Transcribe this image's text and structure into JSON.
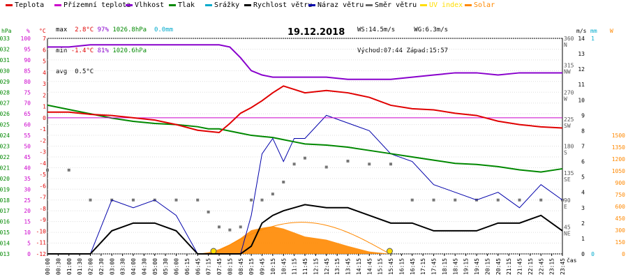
{
  "chart_data": {
    "type": "line",
    "title": "19.12.2018",
    "legend": [
      {
        "name": "Teplota",
        "color": "#e00000"
      },
      {
        "name": "Přízemní teplota",
        "color": "#cc00cc"
      },
      {
        "name": "Vlhkost",
        "color": "#8800cc"
      },
      {
        "name": "Tlak",
        "color": "#008800"
      },
      {
        "name": "Srážky",
        "color": "#00aacc"
      },
      {
        "name": "Rychlost větru",
        "color": "#000000"
      },
      {
        "name": "Náraz větru",
        "color": "#0000aa"
      },
      {
        "name": "Směr větru",
        "color": "#666666"
      },
      {
        "name": "UV index",
        "color": "#ffdd00"
      },
      {
        "name": "Solar",
        "color": "#ff8800"
      }
    ],
    "stats": {
      "max_label": "max",
      "max_temp": "2.8°C",
      "max_hum": "97%",
      "max_press": "1026.8hPa",
      "rain": "0.0mm",
      "min_label": "min",
      "min_temp": "-1.4°C",
      "min_hum": "81%",
      "min_press": "1020.6hPa",
      "avg_label": "avg",
      "avg_temp": "0.5°C",
      "ws": "WS:14.5m/s",
      "wg": "WG:6.3m/s",
      "sunrise": "Východ:07:44",
      "sunset": "Západ:15:57"
    },
    "axes": {
      "hpa_label": "hPa",
      "hpa_ticks": [
        "1033",
        "1032",
        "1031",
        "1030",
        "1029",
        "1028",
        "1027",
        "1026",
        "1025",
        "1024",
        "1023",
        "1022",
        "1021",
        "1020",
        "1019",
        "1018",
        "1017",
        "1016",
        "1015",
        "1014",
        "1013"
      ],
      "pct_label": "%",
      "pct_ticks": [
        "100",
        "95",
        "90",
        "85",
        "80",
        "75",
        "70",
        "65",
        "60",
        "55",
        "50",
        "45",
        "40",
        "35",
        "30",
        "25",
        "20",
        "15",
        "10",
        "5",
        "0"
      ],
      "c_label": "°C",
      "c_ticks": [
        "7",
        "6",
        "5",
        "4",
        "3",
        "2",
        "1",
        "0",
        "-1",
        "-2",
        "-3",
        "-4",
        "-5",
        "-6",
        "-7",
        "-8",
        "-9",
        "-10",
        "-11",
        "-12"
      ],
      "ms_label": "m/s",
      "ms_ticks": [
        "14",
        "13",
        "12",
        "11",
        "10",
        "9",
        "8",
        "7",
        "6",
        "5",
        "4",
        "3",
        "2",
        "1",
        "0"
      ],
      "mm_label": "mm",
      "mm_ticks": [
        "1",
        "0"
      ],
      "w_label": "W",
      "w_ticks": [
        "1500",
        "1350",
        "1200",
        "1050",
        "900",
        "750",
        "600",
        "450",
        "300",
        "150",
        "0"
      ],
      "dir_ticks": [
        "360\nN",
        "315\nNW",
        "270\nW",
        "225\nSW",
        "180\nS",
        "135\nSE",
        "90\nE",
        "45\nNE"
      ],
      "x_label": "čas",
      "x_ticks": [
        "00:00",
        "00:30",
        "01:00",
        "01:30",
        "02:00",
        "02:30",
        "03:00",
        "03:30",
        "04:00",
        "04:30",
        "05:00",
        "05:30",
        "06:00",
        "06:15",
        "06:45",
        "07:15",
        "07:45",
        "08:15",
        "08:45",
        "09:15",
        "09:45",
        "10:15",
        "10:45",
        "11:15",
        "11:45",
        "12:15",
        "12:45",
        "13:15",
        "13:45",
        "14:15",
        "14:45",
        "15:15",
        "15:45",
        "16:15",
        "16:45",
        "17:15",
        "17:45",
        "18:15",
        "18:45",
        "19:15",
        "19:45",
        "20:15",
        "20:45",
        "21:15",
        "21:45",
        "22:15",
        "22:45",
        "23:15",
        "23:45"
      ]
    },
    "x_hours": [
      0,
      1,
      2,
      3,
      4,
      5,
      6,
      7,
      7.5,
      8,
      8.5,
      9,
      9.5,
      10,
      10.5,
      11,
      11.5,
      12,
      13,
      14,
      15,
      16,
      17,
      18,
      19,
      20,
      21,
      22,
      23,
      24
    ],
    "series": [
      {
        "name": "Teplota",
        "unit": "°C",
        "y": [
          0.5,
          0.5,
          0.3,
          0.2,
          0.0,
          -0.2,
          -0.6,
          -1.1,
          -1.2,
          -1.3,
          -0.5,
          0.4,
          0.9,
          1.5,
          2.2,
          2.8,
          2.5,
          2.2,
          2.4,
          2.2,
          1.8,
          1.1,
          0.8,
          0.7,
          0.4,
          0.2,
          -0.3,
          -0.6,
          -0.8,
          -0.9
        ]
      },
      {
        "name": "Přízemní teplota",
        "unit": "°C",
        "y": [
          0,
          0,
          0,
          0,
          0,
          0,
          0,
          0,
          0,
          0,
          0,
          0,
          0,
          0,
          0,
          0,
          0,
          0,
          0,
          0,
          0,
          0,
          0,
          0,
          0,
          0,
          0,
          0,
          0,
          0
        ]
      },
      {
        "name": "Vlhkost",
        "unit": "%",
        "y": [
          96,
          96,
          97,
          97,
          97,
          97,
          97,
          97,
          97,
          97,
          96,
          91,
          85,
          83,
          82,
          82,
          82,
          82,
          82,
          81,
          81,
          81,
          82,
          83,
          84,
          84,
          83,
          84,
          84,
          84
        ]
      },
      {
        "name": "Tlak",
        "unit": "hPa",
        "y": [
          1026.8,
          1026.4,
          1026.0,
          1025.6,
          1025.3,
          1025.1,
          1025.0,
          1024.8,
          1024.6,
          1024.6,
          1024.4,
          1024.2,
          1024.0,
          1023.9,
          1023.8,
          1023.6,
          1023.4,
          1023.2,
          1023.1,
          1022.9,
          1022.6,
          1022.3,
          1022.0,
          1021.7,
          1021.4,
          1021.3,
          1021.1,
          1020.8,
          1020.6,
          1020.9
        ]
      },
      {
        "name": "Rychlost větru",
        "unit": "m/s",
        "y": [
          0,
          0,
          0,
          1.5,
          2,
          2,
          1.5,
          0,
          0,
          0,
          0,
          0,
          0.5,
          2.0,
          2.5,
          2.8,
          3.0,
          3.2,
          3.0,
          3.0,
          2.5,
          2.0,
          2.0,
          1.5,
          1.5,
          1.5,
          2.0,
          2.0,
          2.5,
          1.5
        ]
      },
      {
        "name": "Náraz větru",
        "unit": "m/s",
        "y": [
          0,
          0,
          0,
          3.5,
          3,
          3.5,
          2.5,
          0,
          0,
          0,
          0,
          0,
          2.5,
          6.5,
          7.5,
          6.0,
          7.5,
          7.5,
          9.0,
          8.5,
          8.0,
          6.5,
          6.0,
          4.5,
          4.0,
          3.5,
          4.0,
          3.0,
          4.5,
          3.5
        ]
      },
      {
        "name": "Směr větru",
        "unit": "°",
        "y": [
          140,
          140,
          90,
          90,
          90,
          90,
          90,
          90,
          70,
          45,
          40,
          45,
          90,
          90,
          100,
          120,
          150,
          160,
          145,
          155,
          150,
          150,
          90,
          90,
          90,
          90,
          90,
          90,
          90,
          90
        ]
      },
      {
        "name": "Solar",
        "unit": "W",
        "y": [
          0,
          0,
          0,
          0,
          0,
          0,
          0,
          0,
          20,
          60,
          120,
          200,
          300,
          330,
          350,
          320,
          270,
          220,
          180,
          100,
          30,
          0,
          0,
          0,
          0,
          0,
          0,
          0,
          0,
          0
        ]
      }
    ]
  }
}
